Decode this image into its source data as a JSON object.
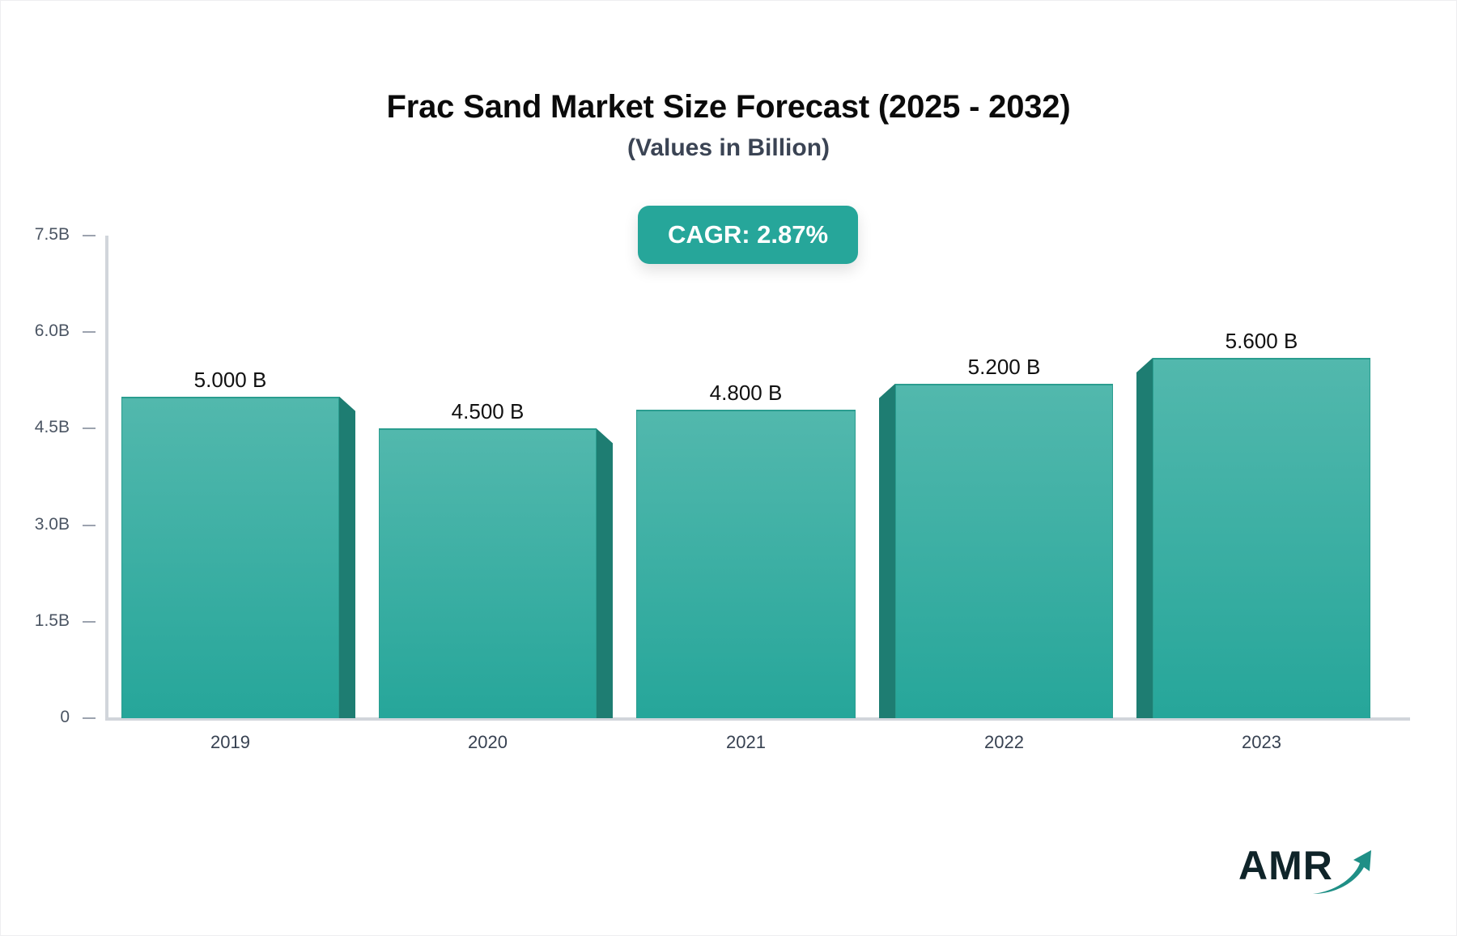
{
  "header": {
    "title": "Frac Sand Market Size Forecast (2025 - 2032)",
    "subtitle": "(Values in Billion)"
  },
  "badge": {
    "label": "CAGR: 2.87%",
    "color": "#26a69a"
  },
  "colors": {
    "bar_face_top": "#52b8ad",
    "bar_face_bottom": "#26a69a",
    "bar_side": "#1e7d72",
    "axis": "#d1d5db"
  },
  "y_axis": {
    "ticks": [
      "0",
      "1.5B",
      "3.0B",
      "4.5B",
      "6.0B",
      "7.5B"
    ]
  },
  "bars": [
    {
      "year": "2019",
      "value": 5.0,
      "label": "5.000 B"
    },
    {
      "year": "2020",
      "value": 4.5,
      "label": "4.500 B"
    },
    {
      "year": "2021",
      "value": 4.8,
      "label": "4.800 B"
    },
    {
      "year": "2022",
      "value": 5.2,
      "label": "5.200 B"
    },
    {
      "year": "2023",
      "value": 5.6,
      "label": "5.600 B"
    }
  ],
  "logo": {
    "text": "AMR"
  },
  "chart_data": {
    "type": "bar",
    "title": "Frac Sand Market Size Forecast (2025 - 2032)",
    "subtitle": "(Values in Billion)",
    "annotation": "CAGR: 2.87%",
    "categories": [
      "2019",
      "2020",
      "2021",
      "2022",
      "2023"
    ],
    "values": [
      5.0,
      4.5,
      4.8,
      5.2,
      5.6
    ],
    "data_labels": [
      "5.000 B",
      "4.500 B",
      "4.800 B",
      "5.200 B",
      "5.600 B"
    ],
    "xlabel": "",
    "ylabel": "",
    "ylim": [
      0,
      7.5
    ],
    "yticks": [
      0,
      1.5,
      3.0,
      4.5,
      6.0,
      7.5
    ],
    "ytick_labels": [
      "0",
      "1.5B",
      "3.0B",
      "4.5B",
      "6.0B",
      "7.5B"
    ],
    "grid": false,
    "legend": null
  }
}
